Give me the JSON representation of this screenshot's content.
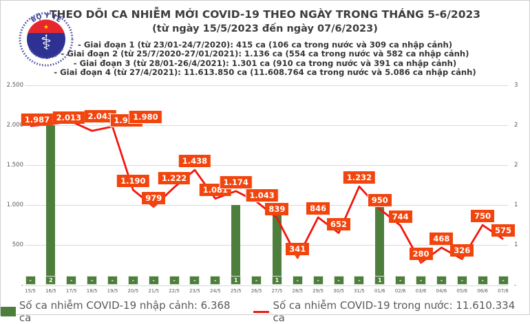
{
  "header": {
    "title": "THEO DÕI CA NHIỄM MỚI COVID-19 THEO NGÀY TRONG THÁNG 5-6/2023",
    "subtitle": "(từ ngày 15/5/2023 đến ngày 07/6/2023)",
    "phases": [
      "- Giai đoạn 1 (từ 23/01-24/7/2020): 415 ca (106 ca trong nước và 309 ca nhập cảnh)",
      "- Giai đoạn 2 (từ 25/7/2020-27/01/2021): 1.136 ca (554 ca trong nước và 582 ca nhập cảnh)",
      "- Giai đoạn 3 (từ 28/01-26/4/2021): 1.301 ca (910 ca trong nước và 391 ca nhập cảnh)",
      "- Giai đoạn 4 (từ 27/4/2021): 11.613.850 ca (11.608.764 ca trong nước và 5.086 ca nhập cảnh)"
    ]
  },
  "logo": {
    "top_text": "BỘ Y TẾ",
    "bottom_text": "MINISTRY OF HEALTH",
    "symbol": "staff-of-asclepius-icon"
  },
  "chart_data": {
    "type": "line",
    "title": "THEO DÕI CA NHIỄM MỚI COVID-19 THEO NGÀY TRONG THÁNG 5-6/2023",
    "categories": [
      "15/5",
      "16/5",
      "17/5",
      "18/5",
      "19/5",
      "20/5",
      "21/5",
      "22/5",
      "23/5",
      "24/5",
      "25/5",
      "26/5",
      "27/5",
      "28/5",
      "29/5",
      "30/5",
      "31/5",
      "01/6",
      "02/6",
      "03/6",
      "04/6",
      "05/6",
      "06/6",
      "07/6"
    ],
    "series": [
      {
        "name": "Số ca nhiễm COVID-19 trong nước",
        "type": "line",
        "color": "#f2150d",
        "values": [
          1987,
          2013,
          2043,
          1927,
          1980,
          1190,
          979,
          1222,
          1438,
          1081,
          1174,
          1043,
          839,
          341,
          846,
          652,
          1232,
          950,
          744,
          280,
          468,
          326,
          750,
          575
        ],
        "labels": [
          "1.987",
          "2.013",
          "2.043",
          "1.927",
          "1.980",
          "1.190",
          "979",
          "1.222",
          "1.438",
          "1.081",
          "1.174",
          "1.043",
          "839",
          "341",
          "846",
          "652",
          "1.232",
          "950",
          "744",
          "280",
          "468",
          "326",
          "750",
          "575"
        ]
      },
      {
        "name": "Số ca nhiễm COVID-19 nhập cảnh",
        "type": "bar",
        "color": "#4e7e3c",
        "values": [
          0,
          2,
          0,
          0,
          0,
          0,
          0,
          0,
          0,
          0,
          1,
          0,
          1,
          0,
          0,
          0,
          0,
          1,
          0,
          0,
          0,
          0,
          0,
          0
        ],
        "labels": [
          "-",
          "2",
          "-",
          "-",
          "-",
          "-",
          "-",
          "-",
          "-",
          "-",
          "1",
          "-",
          "1",
          "-",
          "-",
          "-",
          "-",
          "1",
          "-",
          "-",
          "-",
          "-",
          "-",
          "-"
        ]
      }
    ],
    "left_axis_ticks": [
      "2.500",
      "2.000",
      "1.500",
      "1.000",
      "500",
      "-"
    ],
    "left_axis_tick_values": [
      2500,
      2000,
      1500,
      1000,
      500,
      0
    ],
    "right_axis_ticks": [
      "3",
      "2",
      "2",
      "1",
      "1",
      "-"
    ],
    "ylim_left": [
      0,
      2500
    ],
    "grid": "horizontal",
    "legend_position": "bottom"
  },
  "legend": {
    "bar_label": "Số ca nhiễm COVID-19 nhập cảnh: 6.368 ca",
    "line_label": "Số ca nhiễm COVID-19 trong nước: 11.610.334 ca"
  },
  "colors": {
    "line": "#f2150d",
    "data_label_bg": "#f2440d",
    "bar": "#4e7e3c",
    "grid": "#d9d9d9",
    "axis_text": "#595959",
    "title_text": "#3d3d3d"
  }
}
